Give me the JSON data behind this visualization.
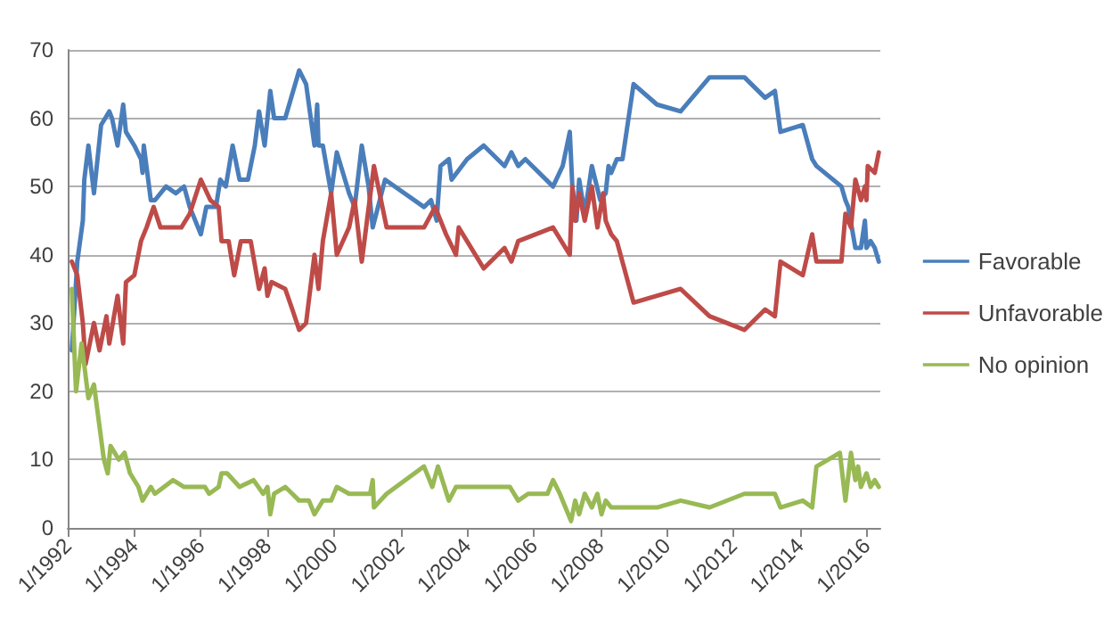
{
  "chart_data": {
    "type": "line",
    "legend": "right",
    "grid": "y",
    "marker": "none",
    "line_style": "solid",
    "ylim": [
      0,
      70
    ],
    "yticks": [
      0,
      10,
      20,
      30,
      40,
      50,
      60,
      70
    ],
    "xlim": [
      "1992-01-01",
      "2016-06-01"
    ],
    "xticks": [
      {
        "value": "1992-01-01",
        "label": "1/1992"
      },
      {
        "value": "1994-01-01",
        "label": "1/1994"
      },
      {
        "value": "1996-01-01",
        "label": "1/1996"
      },
      {
        "value": "1998-01-01",
        "label": "1/1998"
      },
      {
        "value": "2000-01-01",
        "label": "1/2000"
      },
      {
        "value": "2002-01-01",
        "label": "1/2002"
      },
      {
        "value": "2004-01-01",
        "label": "1/2004"
      },
      {
        "value": "2006-01-01",
        "label": "1/2006"
      },
      {
        "value": "2008-01-01",
        "label": "1/2008"
      },
      {
        "value": "2010-01-01",
        "label": "1/2010"
      },
      {
        "value": "2012-01-01",
        "label": "1/2012"
      },
      {
        "value": "2014-01-01",
        "label": "1/2014"
      },
      {
        "value": "2016-01-01",
        "label": "1/2016"
      }
    ],
    "series": [
      {
        "name": "Favorable",
        "color": "#4a7ebb",
        "x": [
          "1992-02-15",
          "1992-04-15",
          "1992-06-15",
          "1992-07-01",
          "1992-08-15",
          "1992-10-15",
          "1993-01-01",
          "1993-04-01",
          "1993-05-01",
          "1993-07-01",
          "1993-09-01",
          "1993-10-01",
          "1994-01-01",
          "1994-03-15",
          "1994-04-01",
          "1994-04-15",
          "1994-07-01",
          "1994-08-15",
          "1994-12-15",
          "1995-04-01",
          "1995-07-01",
          "1995-09-01",
          "1996-01-01",
          "1996-03-01",
          "1996-06-15",
          "1996-08-01",
          "1996-10-01",
          "1996-12-15",
          "1997-03-01",
          "1997-06-01",
          "1997-08-15",
          "1997-10-01",
          "1997-12-01",
          "1998-02-01",
          "1998-03-15",
          "1998-07-15",
          "1998-12-15",
          "1999-03-01",
          "1999-06-01",
          "1999-07-01",
          "1999-07-15",
          "1999-09-01",
          "1999-12-01",
          "2000-02-01",
          "2000-06-15",
          "2000-08-15",
          "2000-11-01",
          "2001-01-15",
          "2001-03-01",
          "2001-07-15",
          "2002-09-15",
          "2002-12-01",
          "2003-02-01",
          "2003-03-15",
          "2003-06-15",
          "2003-07-15",
          "2004-01-01",
          "2004-07-01",
          "2005-02-15",
          "2005-05-01",
          "2005-07-15",
          "2005-10-01",
          "2006-08-01",
          "2006-11-15",
          "2007-02-01",
          "2007-03-01",
          "2007-04-15",
          "2007-05-15",
          "2007-07-15",
          "2007-10-01",
          "2008-01-01",
          "2008-03-01",
          "2008-04-01",
          "2008-05-01",
          "2008-07-01",
          "2008-09-01",
          "2009-01-01",
          "2009-09-15",
          "2010-06-01",
          "2011-04-15",
          "2012-05-01",
          "2012-12-15",
          "2013-04-01",
          "2013-06-01",
          "2014-02-01",
          "2014-05-15",
          "2014-07-01",
          "2015-04-01",
          "2015-05-15",
          "2015-06-15",
          "2015-09-01",
          "2015-11-01",
          "2015-12-15",
          "2016-01-01",
          "2016-02-15",
          "2016-04-01",
          "2016-05-15"
        ],
        "values": [
          26,
          39,
          45,
          51,
          56,
          49,
          59,
          61,
          60,
          56,
          62,
          58,
          56,
          54,
          52,
          56,
          48,
          48,
          50,
          49,
          50,
          47,
          43,
          47,
          47,
          51,
          50,
          56,
          51,
          51,
          56,
          61,
          56,
          64,
          60,
          60,
          67,
          65,
          56,
          62,
          56,
          56,
          49,
          55,
          49,
          47,
          56,
          50,
          44,
          51,
          47,
          48,
          45,
          53,
          54,
          51,
          54,
          56,
          53,
          55,
          53,
          54,
          50,
          53,
          58,
          50,
          45,
          51,
          46,
          53,
          48,
          49,
          53,
          52,
          54,
          54,
          65,
          62,
          61,
          66,
          66,
          63,
          64,
          58,
          59,
          54,
          53,
          50,
          48,
          47,
          41,
          41,
          45,
          41,
          42,
          41,
          39
        ]
      },
      {
        "name": "Unfavorable",
        "color": "#be4b48",
        "x": [
          "1992-02-15",
          "1992-04-15",
          "1992-06-15",
          "1992-07-15",
          "1992-10-15",
          "1992-12-15",
          "1993-03-01",
          "1993-04-01",
          "1993-07-01",
          "1993-09-01",
          "1993-10-01",
          "1994-01-01",
          "1994-03-15",
          "1994-05-15",
          "1994-08-01",
          "1994-10-15",
          "1995-06-01",
          "1995-09-01",
          "1996-01-01",
          "1996-04-15",
          "1996-07-15",
          "1996-08-15",
          "1996-11-01",
          "1997-01-01",
          "1997-03-15",
          "1997-07-01",
          "1997-10-01",
          "1997-12-01",
          "1998-01-01",
          "1998-02-15",
          "1998-07-15",
          "1998-10-01",
          "1998-12-15",
          "1999-03-01",
          "1999-06-01",
          "1999-07-15",
          "1999-09-01",
          "1999-12-01",
          "2000-02-01",
          "2000-06-15",
          "2000-08-15",
          "2000-11-01",
          "2001-03-15",
          "2001-08-01",
          "2002-09-15",
          "2003-01-15",
          "2003-05-15",
          "2003-09-01",
          "2003-10-01",
          "2004-07-01",
          "2005-02-15",
          "2005-05-01",
          "2005-07-15",
          "2006-08-01",
          "2007-02-01",
          "2007-03-01",
          "2007-04-01",
          "2007-05-15",
          "2007-07-15",
          "2007-10-01",
          "2007-12-01",
          "2008-02-01",
          "2008-03-01",
          "2008-05-01",
          "2008-07-01",
          "2009-01-01",
          "2010-06-01",
          "2011-04-15",
          "2012-05-01",
          "2012-12-15",
          "2013-04-01",
          "2013-06-01",
          "2014-02-01",
          "2014-05-15",
          "2014-07-01",
          "2015-04-01",
          "2015-05-15",
          "2015-07-15",
          "2015-09-01",
          "2015-11-01",
          "2015-12-15",
          "2016-01-01",
          "2016-01-15",
          "2016-04-01",
          "2016-05-15"
        ],
        "values": [
          39,
          37,
          30,
          24,
          30,
          26,
          31,
          27,
          34,
          27,
          36,
          37,
          42,
          44,
          47,
          44,
          44,
          46,
          51,
          48,
          47,
          42,
          42,
          37,
          42,
          42,
          35,
          38,
          34,
          36,
          35,
          32,
          29,
          30,
          40,
          35,
          42,
          49,
          40,
          44,
          48,
          39,
          53,
          44,
          44,
          47,
          43,
          40,
          44,
          38,
          41,
          39,
          42,
          44,
          40,
          50,
          45,
          49,
          45,
          50,
          44,
          49,
          45,
          43,
          42,
          33,
          35,
          31,
          29,
          32,
          31,
          39,
          37,
          43,
          39,
          39,
          46,
          44,
          51,
          48,
          50,
          48,
          53,
          52,
          55
        ]
      },
      {
        "name": "No opinion",
        "color": "#98b954",
        "x": [
          "1992-02-15",
          "1992-04-01",
          "1992-06-01",
          "1992-08-15",
          "1992-10-15",
          "1993-02-01",
          "1993-03-15",
          "1993-04-15",
          "1993-07-15",
          "1993-09-15",
          "1993-11-15",
          "1994-02-15",
          "1994-04-01",
          "1994-07-01",
          "1994-08-15",
          "1995-03-01",
          "1995-07-01",
          "1996-02-15",
          "1996-04-01",
          "1996-07-15",
          "1996-08-15",
          "1996-10-15",
          "1997-03-01",
          "1997-08-01",
          "1997-11-15",
          "1998-01-01",
          "1998-02-01",
          "1998-03-15",
          "1998-07-15",
          "1998-10-01",
          "1998-12-15",
          "1999-04-01",
          "1999-06-01",
          "1999-09-01",
          "1999-12-01",
          "2000-02-01",
          "2000-06-15",
          "2000-10-15",
          "2001-02-01",
          "2001-03-01",
          "2001-03-15",
          "2001-08-01",
          "2002-09-15",
          "2002-12-15",
          "2003-02-15",
          "2003-06-15",
          "2003-09-01",
          "2004-06-01",
          "2005-04-15",
          "2005-07-15",
          "2005-11-01",
          "2006-06-01",
          "2006-08-01",
          "2006-10-15",
          "2007-02-15",
          "2007-04-01",
          "2007-05-15",
          "2007-07-15",
          "2007-10-01",
          "2007-12-01",
          "2008-01-15",
          "2008-03-01",
          "2008-05-01",
          "2009-09-15",
          "2010-06-01",
          "2011-04-15",
          "2012-05-01",
          "2013-04-01",
          "2013-06-01",
          "2014-02-01",
          "2014-05-15",
          "2014-07-01",
          "2015-03-15",
          "2015-05-15",
          "2015-07-15",
          "2015-09-01",
          "2015-10-01",
          "2015-11-01",
          "2016-01-01",
          "2016-02-15",
          "2016-04-01",
          "2016-05-15"
        ],
        "values": [
          35,
          20,
          27,
          19,
          21,
          10,
          8,
          12,
          10,
          11,
          8,
          6,
          4,
          6,
          5,
          7,
          6,
          6,
          5,
          6,
          8,
          8,
          6,
          7,
          5,
          6,
          2,
          5,
          6,
          5,
          4,
          4,
          2,
          4,
          4,
          6,
          5,
          5,
          5,
          7,
          3,
          5,
          9,
          6,
          9,
          4,
          6,
          6,
          6,
          4,
          5,
          5,
          7,
          5,
          1,
          4,
          2,
          5,
          3,
          5,
          2,
          4,
          3,
          3,
          4,
          3,
          5,
          5,
          3,
          4,
          3,
          9,
          11,
          4,
          11,
          7,
          9,
          6,
          8,
          6,
          7,
          6
        ]
      }
    ]
  }
}
